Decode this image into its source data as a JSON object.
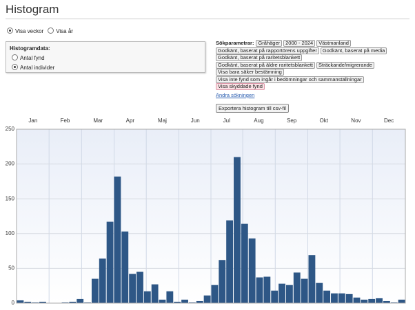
{
  "header": {
    "title": "Histogram"
  },
  "view": {
    "options": [
      "Visa veckor",
      "Visa år"
    ],
    "selected": 0
  },
  "histogram_data": {
    "title": "Histogramdata:",
    "options": [
      "Antal fynd",
      "Antal individer"
    ],
    "selected": 1
  },
  "search": {
    "label": "Sökparametrar:",
    "rows": [
      [
        "Gråhäger",
        "2000 - 2024",
        "Västmanland"
      ],
      [
        "Godkänt, baserat på rapportörens uppgifter",
        "Godkänt, baserat på media"
      ],
      [
        "Godkänt, baserat på raritetsblankett"
      ],
      [
        "Godkänt, baserat på äldre raritetsblankett",
        "Sträckande/migrerande"
      ],
      [
        "Visa bara säker bestämning"
      ],
      [
        "Visa inte fynd som ingår i bedömningar och sammanställningar"
      ],
      [
        "Visa skyddade fynd"
      ]
    ],
    "link": "Ändra sökningen"
  },
  "export_button": "Exportera histogram till csv-fil",
  "chart_data": {
    "type": "histogram",
    "color": "#2e5786",
    "bins": [
      0,
      1,
      2,
      3,
      4,
      5,
      6,
      7,
      8,
      9,
      10,
      11,
      12,
      13,
      14,
      15,
      16,
      17,
      18,
      19,
      20,
      21,
      22,
      23,
      24,
      25,
      26,
      27,
      28,
      29,
      30,
      31,
      32,
      33,
      34,
      35,
      36,
      37,
      38,
      39,
      40,
      41,
      42,
      43,
      44,
      45,
      46,
      47,
      48,
      49,
      50,
      51,
      52
    ],
    "values": [
      4,
      2,
      1,
      2,
      0,
      0,
      1,
      2,
      6,
      1,
      35,
      64,
      117,
      182,
      103,
      42,
      45,
      17,
      27,
      5,
      17,
      2,
      5,
      1,
      3,
      11,
      26,
      62,
      119,
      210,
      114,
      93,
      37,
      38,
      18,
      28,
      26,
      44,
      35,
      69,
      29,
      18,
      14,
      14,
      13,
      8,
      5,
      6,
      7,
      3,
      1,
      5
    ],
    "xlim": [
      0,
      52
    ],
    "xticks": [
      {
        "value": 2.2,
        "label": "Jan"
      },
      {
        "value": 6.5,
        "label": "Feb"
      },
      {
        "value": 10.9,
        "label": "Mar"
      },
      {
        "value": 15.2,
        "label": "Apr"
      },
      {
        "value": 19.5,
        "label": "Maj"
      },
      {
        "value": 23.9,
        "label": "Jun"
      },
      {
        "value": 28.1,
        "label": "Jul"
      },
      {
        "value": 32.4,
        "label": "Aug"
      },
      {
        "value": 36.8,
        "label": "Sep"
      },
      {
        "value": 41.1,
        "label": "Okt"
      },
      {
        "value": 45.4,
        "label": "Nov"
      },
      {
        "value": 49.8,
        "label": "Dec"
      }
    ],
    "ylim": [
      0,
      250
    ],
    "yticks": [
      0,
      50,
      100,
      150,
      200,
      250
    ],
    "grid": true
  }
}
